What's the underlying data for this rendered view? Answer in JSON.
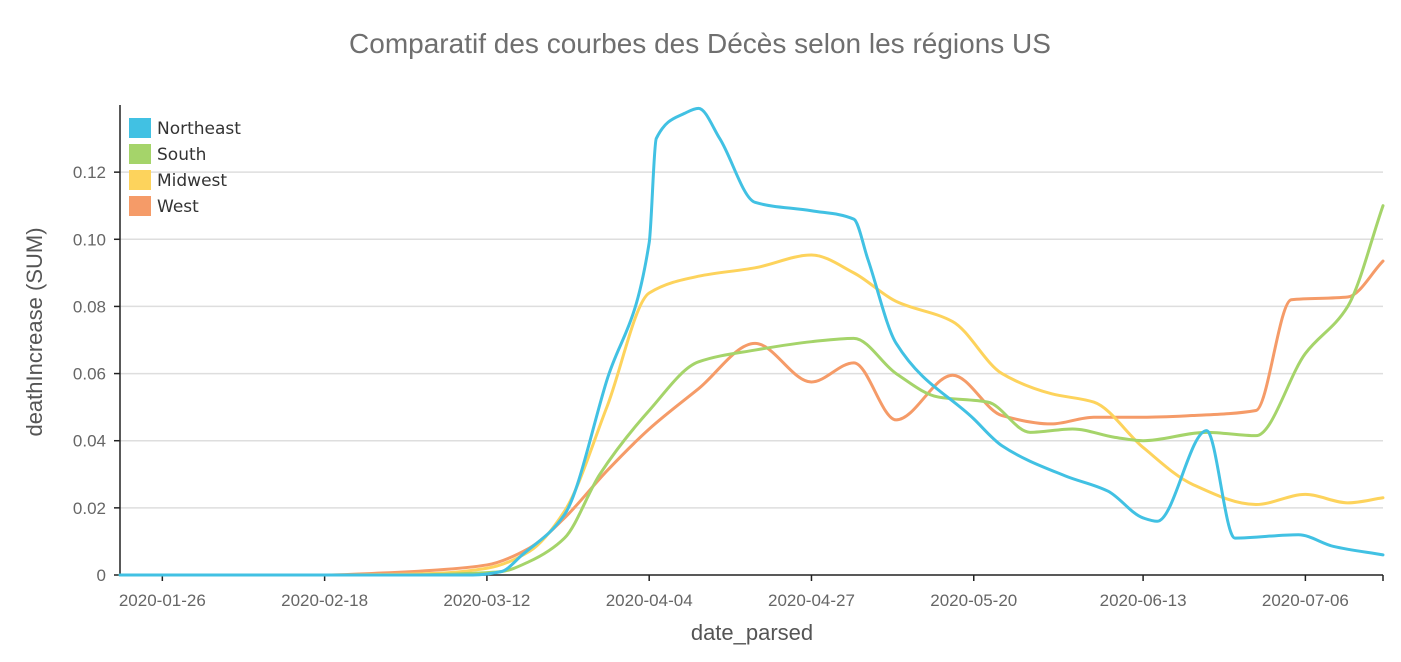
{
  "chart_data": {
    "type": "line",
    "title": "Comparatif des courbes des Décès selon les régions US",
    "xlabel": "date_parsed",
    "ylabel": "deathIncrease (SUM)",
    "x_ticks": [
      "2020-01-26",
      "2020-02-18",
      "2020-03-12",
      "2020-04-04",
      "2020-04-27",
      "2020-05-20",
      "2020-06-13",
      "2020-07-06"
    ],
    "y_ticks": [
      "0",
      "0.02",
      "0.04",
      "0.06",
      "0.08",
      "0.10",
      "0.12"
    ],
    "ylim": [
      0,
      0.14
    ],
    "xlim": [
      "2020-01-20",
      "2020-07-17"
    ],
    "grid": "horizontal",
    "legend_position": "top-left",
    "series": [
      {
        "name": "Northeast",
        "color": "#41c1e3",
        "points": [
          [
            "2020-01-20",
            0
          ],
          [
            "2020-02-05",
            0
          ],
          [
            "2020-02-20",
            0
          ],
          [
            "2020-03-01",
            0
          ],
          [
            "2020-03-10",
            0
          ],
          [
            "2020-03-14",
            0.001
          ],
          [
            "2020-03-17",
            0.006
          ],
          [
            "2020-03-23",
            0.018
          ],
          [
            "2020-03-29",
            0.058
          ],
          [
            "2020-04-04",
            0.099
          ],
          [
            "2020-04-05",
            0.13
          ],
          [
            "2020-04-09",
            0.1375
          ],
          [
            "2020-04-11",
            0.139
          ],
          [
            "2020-04-14",
            0.13
          ],
          [
            "2020-04-19",
            0.111
          ],
          [
            "2020-04-27",
            0.1085
          ],
          [
            "2020-05-03",
            0.106
          ],
          [
            "2020-05-05",
            0.094
          ],
          [
            "2020-05-09",
            0.069
          ],
          [
            "2020-05-20",
            0.0465
          ],
          [
            "2020-05-24",
            0.0385
          ],
          [
            "2020-06-02",
            0.0295
          ],
          [
            "2020-06-08",
            0.025
          ],
          [
            "2020-06-13",
            0.017
          ],
          [
            "2020-06-15",
            0.016
          ],
          [
            "2020-06-22",
            0.043
          ],
          [
            "2020-06-26",
            0.011
          ],
          [
            "2020-07-05",
            0.012
          ],
          [
            "2020-07-10",
            0.0085
          ],
          [
            "2020-07-17",
            0.006
          ]
        ]
      },
      {
        "name": "South",
        "color": "#a5d46a",
        "points": [
          [
            "2020-01-20",
            0
          ],
          [
            "2020-02-18",
            0
          ],
          [
            "2020-03-01",
            0
          ],
          [
            "2020-03-10",
            0.0005
          ],
          [
            "2020-03-14",
            0.001
          ],
          [
            "2020-03-18",
            0.004
          ],
          [
            "2020-03-23",
            0.011
          ],
          [
            "2020-03-28",
            0.03
          ],
          [
            "2020-04-04",
            0.049
          ],
          [
            "2020-04-11",
            0.0635
          ],
          [
            "2020-04-19",
            0.067
          ],
          [
            "2020-04-27",
            0.0695
          ],
          [
            "2020-05-03",
            0.0705
          ],
          [
            "2020-05-09",
            0.06
          ],
          [
            "2020-05-15",
            0.053
          ],
          [
            "2020-05-22",
            0.0515
          ],
          [
            "2020-05-28",
            0.0425
          ],
          [
            "2020-06-03",
            0.0435
          ],
          [
            "2020-06-09",
            0.041
          ],
          [
            "2020-06-13",
            0.04
          ],
          [
            "2020-06-22",
            0.0425
          ],
          [
            "2020-06-29",
            0.0415
          ],
          [
            "2020-07-06",
            0.066
          ],
          [
            "2020-07-12",
            0.08
          ],
          [
            "2020-07-17",
            0.11
          ]
        ]
      },
      {
        "name": "Midwest",
        "color": "#fdd35c",
        "points": [
          [
            "2020-01-20",
            0
          ],
          [
            "2020-02-18",
            0
          ],
          [
            "2020-03-05",
            0.0005
          ],
          [
            "2020-03-12",
            0.002
          ],
          [
            "2020-03-18",
            0.007
          ],
          [
            "2020-03-23",
            0.019
          ],
          [
            "2020-03-29",
            0.05
          ],
          [
            "2020-04-04",
            0.084
          ],
          [
            "2020-04-11",
            0.089
          ],
          [
            "2020-04-19",
            0.0915
          ],
          [
            "2020-04-27",
            0.0953
          ],
          [
            "2020-05-03",
            0.09
          ],
          [
            "2020-05-09",
            0.0815
          ],
          [
            "2020-05-17",
            0.0755
          ],
          [
            "2020-05-24",
            0.06
          ],
          [
            "2020-05-31",
            0.054
          ],
          [
            "2020-06-06",
            0.0515
          ],
          [
            "2020-06-13",
            0.038
          ],
          [
            "2020-06-20",
            0.027
          ],
          [
            "2020-06-29",
            0.021
          ],
          [
            "2020-07-06",
            0.024
          ],
          [
            "2020-07-12",
            0.0215
          ],
          [
            "2020-07-17",
            0.023
          ]
        ]
      },
      {
        "name": "West",
        "color": "#f59b68",
        "points": [
          [
            "2020-01-20",
            0
          ],
          [
            "2020-02-18",
            0
          ],
          [
            "2020-02-25",
            0.0005
          ],
          [
            "2020-03-05",
            0.0015
          ],
          [
            "2020-03-12",
            0.003
          ],
          [
            "2020-03-18",
            0.008
          ],
          [
            "2020-03-23",
            0.017
          ],
          [
            "2020-03-29",
            0.031
          ],
          [
            "2020-04-04",
            0.0435
          ],
          [
            "2020-04-11",
            0.0555
          ],
          [
            "2020-04-19",
            0.069
          ],
          [
            "2020-04-27",
            0.0575
          ],
          [
            "2020-05-03",
            0.0632
          ],
          [
            "2020-05-09",
            0.0462
          ],
          [
            "2020-05-17",
            0.0595
          ],
          [
            "2020-05-24",
            0.0475
          ],
          [
            "2020-05-31",
            0.045
          ],
          [
            "2020-06-06",
            0.047
          ],
          [
            "2020-06-13",
            0.047
          ],
          [
            "2020-06-20",
            0.0475
          ],
          [
            "2020-06-29",
            0.049
          ],
          [
            "2020-07-04",
            0.082
          ],
          [
            "2020-07-12",
            0.0828
          ],
          [
            "2020-07-17",
            0.0935
          ]
        ]
      }
    ]
  }
}
